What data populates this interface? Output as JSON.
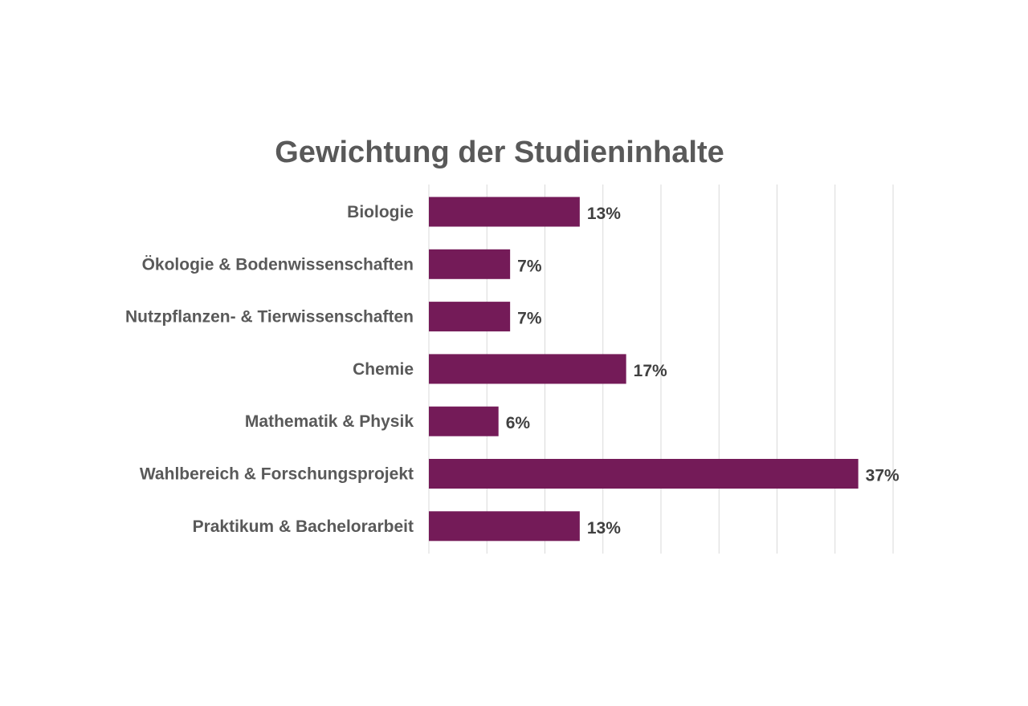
{
  "chart_data": {
    "type": "bar",
    "orientation": "horizontal",
    "title": "Gewichtung der Studieninhalte",
    "categories": [
      "Biologie",
      "Ökologie & Bodenwissenschaften",
      "Nutzpflanzen- & Tierwissenschaften",
      "Chemie",
      "Mathematik & Physik",
      "Wahlbereich & Forschungsprojekt",
      "Praktikum & Bachelorarbeit"
    ],
    "values": [
      13,
      7,
      7,
      17,
      6,
      37,
      13
    ],
    "data_labels": [
      "13%",
      "7%",
      "7%",
      "17%",
      "6%",
      "37%",
      "13%"
    ],
    "value_unit": "%",
    "xlim": [
      0,
      40
    ],
    "x_grid_step": 5,
    "grid": true,
    "axis_tick_labels_visible": false,
    "legend": "none",
    "colors": {
      "bar": "#741b58",
      "grid": "#d9d9d9",
      "text": "#595959"
    }
  }
}
